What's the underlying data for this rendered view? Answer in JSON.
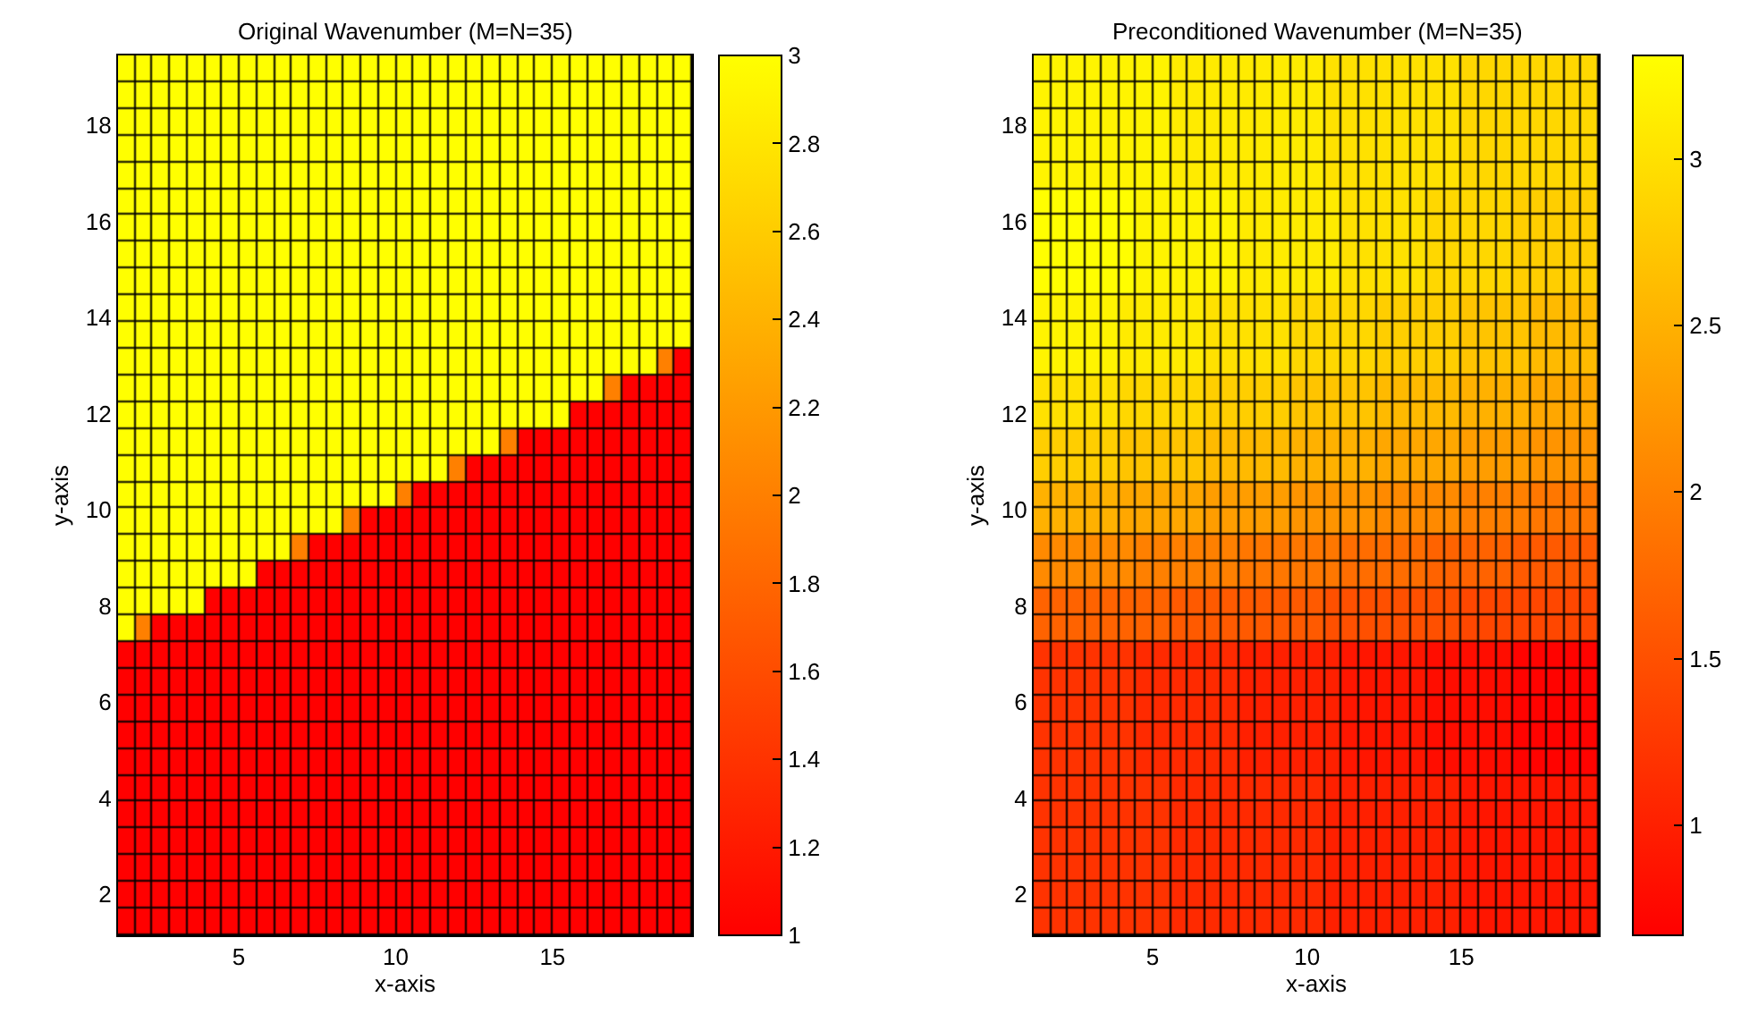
{
  "chart_data": [
    {
      "type": "heatmap",
      "title": "Original Wavenumber (M=N=35)",
      "xlabel": "x-axis",
      "ylabel": "y-axis",
      "xlim": [
        1.15,
        19.45
      ],
      "ylim": [
        1.15,
        19.45
      ],
      "xticks": [
        5,
        10,
        15
      ],
      "yticks": [
        2,
        4,
        6,
        8,
        10,
        12,
        14,
        16,
        18
      ],
      "clim": [
        1,
        3
      ],
      "cticks": [
        1,
        1.2,
        1.4,
        1.6,
        1.8,
        2,
        2.2,
        2.4,
        2.6,
        2.8,
        3
      ],
      "cells": [
        [
          3,
          3,
          3,
          3,
          3,
          3,
          3,
          3,
          3,
          3,
          3,
          3,
          3,
          3,
          3,
          3,
          3,
          3,
          3,
          3,
          3,
          3,
          3,
          3,
          3,
          3,
          3,
          3,
          3,
          3,
          3,
          3,
          3
        ],
        [
          3,
          3,
          3,
          3,
          3,
          3,
          3,
          3,
          3,
          3,
          3,
          3,
          3,
          3,
          3,
          3,
          3,
          3,
          3,
          3,
          3,
          3,
          3,
          3,
          3,
          3,
          3,
          3,
          3,
          3,
          3,
          3,
          3
        ],
        [
          3,
          3,
          3,
          3,
          3,
          3,
          3,
          3,
          3,
          3,
          3,
          3,
          3,
          3,
          3,
          3,
          3,
          3,
          3,
          3,
          3,
          3,
          3,
          3,
          3,
          3,
          3,
          3,
          3,
          3,
          3,
          3,
          3
        ],
        [
          3,
          3,
          3,
          3,
          3,
          3,
          3,
          3,
          3,
          3,
          3,
          3,
          3,
          3,
          3,
          3,
          3,
          3,
          3,
          3,
          3,
          3,
          3,
          3,
          3,
          3,
          3,
          3,
          3,
          3,
          3,
          3,
          3
        ],
        [
          3,
          3,
          3,
          3,
          3,
          3,
          3,
          3,
          3,
          3,
          3,
          3,
          3,
          3,
          3,
          3,
          3,
          3,
          3,
          3,
          3,
          3,
          3,
          3,
          3,
          3,
          3,
          3,
          3,
          3,
          3,
          3,
          3
        ],
        [
          3,
          3,
          3,
          3,
          3,
          3,
          3,
          3,
          3,
          3,
          3,
          3,
          3,
          3,
          3,
          3,
          3,
          3,
          3,
          3,
          3,
          3,
          3,
          3,
          3,
          3,
          3,
          3,
          3,
          3,
          3,
          3,
          3
        ],
        [
          3,
          3,
          3,
          3,
          3,
          3,
          3,
          3,
          3,
          3,
          3,
          3,
          3,
          3,
          3,
          3,
          3,
          3,
          3,
          3,
          3,
          3,
          3,
          3,
          3,
          3,
          3,
          3,
          3,
          3,
          3,
          3,
          3
        ],
        [
          3,
          3,
          3,
          3,
          3,
          3,
          3,
          3,
          3,
          3,
          3,
          3,
          3,
          3,
          3,
          3,
          3,
          3,
          3,
          3,
          3,
          3,
          3,
          3,
          3,
          3,
          3,
          3,
          3,
          3,
          3,
          3,
          3
        ],
        [
          3,
          3,
          3,
          3,
          3,
          3,
          3,
          3,
          3,
          3,
          3,
          3,
          3,
          3,
          3,
          3,
          3,
          3,
          3,
          3,
          3,
          3,
          3,
          3,
          3,
          3,
          3,
          3,
          3,
          3,
          3,
          3,
          3
        ],
        [
          3,
          3,
          3,
          3,
          3,
          3,
          3,
          3,
          3,
          3,
          3,
          3,
          3,
          3,
          3,
          3,
          3,
          3,
          3,
          3,
          3,
          3,
          3,
          3,
          3,
          3,
          3,
          3,
          3,
          3,
          3,
          3,
          3
        ],
        [
          3,
          3,
          3,
          3,
          3,
          3,
          3,
          3,
          3,
          3,
          3,
          3,
          3,
          3,
          3,
          3,
          3,
          3,
          3,
          3,
          3,
          3,
          3,
          3,
          3,
          3,
          3,
          3,
          3,
          3,
          3,
          3,
          3
        ],
        [
          3,
          3,
          3,
          3,
          3,
          3,
          3,
          3,
          3,
          3,
          3,
          3,
          3,
          3,
          3,
          3,
          3,
          3,
          3,
          3,
          3,
          3,
          3,
          3,
          3,
          3,
          3,
          3,
          3,
          3,
          3,
          2,
          1
        ],
        [
          3,
          3,
          3,
          3,
          3,
          3,
          3,
          3,
          3,
          3,
          3,
          3,
          3,
          3,
          3,
          3,
          3,
          3,
          3,
          3,
          3,
          3,
          3,
          3,
          3,
          3,
          3,
          3,
          2,
          1,
          1,
          1,
          1
        ],
        [
          3,
          3,
          3,
          3,
          3,
          3,
          3,
          3,
          3,
          3,
          3,
          3,
          3,
          3,
          3,
          3,
          3,
          3,
          3,
          3,
          3,
          3,
          3,
          3,
          3,
          3,
          1,
          1,
          1,
          1,
          1,
          1,
          1
        ],
        [
          3,
          3,
          3,
          3,
          3,
          3,
          3,
          3,
          3,
          3,
          3,
          3,
          3,
          3,
          3,
          3,
          3,
          3,
          3,
          3,
          3,
          3,
          2,
          1,
          1,
          1,
          1,
          1,
          1,
          1,
          1,
          1,
          1
        ],
        [
          3,
          3,
          3,
          3,
          3,
          3,
          3,
          3,
          3,
          3,
          3,
          3,
          3,
          3,
          3,
          3,
          3,
          3,
          3,
          2,
          1,
          1,
          1,
          1,
          1,
          1,
          1,
          1,
          1,
          1,
          1,
          1,
          1
        ],
        [
          3,
          3,
          3,
          3,
          3,
          3,
          3,
          3,
          3,
          3,
          3,
          3,
          3,
          3,
          3,
          3,
          2,
          1,
          1,
          1,
          1,
          1,
          1,
          1,
          1,
          1,
          1,
          1,
          1,
          1,
          1,
          1,
          1
        ],
        [
          3,
          3,
          3,
          3,
          3,
          3,
          3,
          3,
          3,
          3,
          3,
          3,
          3,
          2,
          1,
          1,
          1,
          1,
          1,
          1,
          1,
          1,
          1,
          1,
          1,
          1,
          1,
          1,
          1,
          1,
          1,
          1,
          1
        ],
        [
          3,
          3,
          3,
          3,
          3,
          3,
          3,
          3,
          3,
          3,
          2,
          1,
          1,
          1,
          1,
          1,
          1,
          1,
          1,
          1,
          1,
          1,
          1,
          1,
          1,
          1,
          1,
          1,
          1,
          1,
          1,
          1,
          1
        ],
        [
          3,
          3,
          3,
          3,
          3,
          3,
          3,
          3,
          1,
          1,
          1,
          1,
          1,
          1,
          1,
          1,
          1,
          1,
          1,
          1,
          1,
          1,
          1,
          1,
          1,
          1,
          1,
          1,
          1,
          1,
          1,
          1,
          1
        ],
        [
          3,
          3,
          3,
          3,
          3,
          1,
          1,
          1,
          1,
          1,
          1,
          1,
          1,
          1,
          1,
          1,
          1,
          1,
          1,
          1,
          1,
          1,
          1,
          1,
          1,
          1,
          1,
          1,
          1,
          1,
          1,
          1,
          1
        ],
        [
          3,
          2,
          1,
          1,
          1,
          1,
          1,
          1,
          1,
          1,
          1,
          1,
          1,
          1,
          1,
          1,
          1,
          1,
          1,
          1,
          1,
          1,
          1,
          1,
          1,
          1,
          1,
          1,
          1,
          1,
          1,
          1,
          1
        ],
        [
          1,
          1,
          1,
          1,
          1,
          1,
          1,
          1,
          1,
          1,
          1,
          1,
          1,
          1,
          1,
          1,
          1,
          1,
          1,
          1,
          1,
          1,
          1,
          1,
          1,
          1,
          1,
          1,
          1,
          1,
          1,
          1,
          1
        ],
        [
          1,
          1,
          1,
          1,
          1,
          1,
          1,
          1,
          1,
          1,
          1,
          1,
          1,
          1,
          1,
          1,
          1,
          1,
          1,
          1,
          1,
          1,
          1,
          1,
          1,
          1,
          1,
          1,
          1,
          1,
          1,
          1,
          1
        ],
        [
          1,
          1,
          1,
          1,
          1,
          1,
          1,
          1,
          1,
          1,
          1,
          1,
          1,
          1,
          1,
          1,
          1,
          1,
          1,
          1,
          1,
          1,
          1,
          1,
          1,
          1,
          1,
          1,
          1,
          1,
          1,
          1,
          1
        ],
        [
          1,
          1,
          1,
          1,
          1,
          1,
          1,
          1,
          1,
          1,
          1,
          1,
          1,
          1,
          1,
          1,
          1,
          1,
          1,
          1,
          1,
          1,
          1,
          1,
          1,
          1,
          1,
          1,
          1,
          1,
          1,
          1,
          1
        ],
        [
          1,
          1,
          1,
          1,
          1,
          1,
          1,
          1,
          1,
          1,
          1,
          1,
          1,
          1,
          1,
          1,
          1,
          1,
          1,
          1,
          1,
          1,
          1,
          1,
          1,
          1,
          1,
          1,
          1,
          1,
          1,
          1,
          1
        ],
        [
          1,
          1,
          1,
          1,
          1,
          1,
          1,
          1,
          1,
          1,
          1,
          1,
          1,
          1,
          1,
          1,
          1,
          1,
          1,
          1,
          1,
          1,
          1,
          1,
          1,
          1,
          1,
          1,
          1,
          1,
          1,
          1,
          1
        ],
        [
          1,
          1,
          1,
          1,
          1,
          1,
          1,
          1,
          1,
          1,
          1,
          1,
          1,
          1,
          1,
          1,
          1,
          1,
          1,
          1,
          1,
          1,
          1,
          1,
          1,
          1,
          1,
          1,
          1,
          1,
          1,
          1,
          1
        ],
        [
          1,
          1,
          1,
          1,
          1,
          1,
          1,
          1,
          1,
          1,
          1,
          1,
          1,
          1,
          1,
          1,
          1,
          1,
          1,
          1,
          1,
          1,
          1,
          1,
          1,
          1,
          1,
          1,
          1,
          1,
          1,
          1,
          1
        ],
        [
          1,
          1,
          1,
          1,
          1,
          1,
          1,
          1,
          1,
          1,
          1,
          1,
          1,
          1,
          1,
          1,
          1,
          1,
          1,
          1,
          1,
          1,
          1,
          1,
          1,
          1,
          1,
          1,
          1,
          1,
          1,
          1,
          1
        ],
        [
          1,
          1,
          1,
          1,
          1,
          1,
          1,
          1,
          1,
          1,
          1,
          1,
          1,
          1,
          1,
          1,
          1,
          1,
          1,
          1,
          1,
          1,
          1,
          1,
          1,
          1,
          1,
          1,
          1,
          1,
          1,
          1,
          1
        ],
        [
          1,
          1,
          1,
          1,
          1,
          1,
          1,
          1,
          1,
          1,
          1,
          1,
          1,
          1,
          1,
          1,
          1,
          1,
          1,
          1,
          1,
          1,
          1,
          1,
          1,
          1,
          1,
          1,
          1,
          1,
          1,
          1,
          1
        ]
      ]
    },
    {
      "type": "heatmap",
      "title": "Preconditioned Wavenumber (M=N=35)",
      "xlabel": "x-axis",
      "ylabel": "y-axis",
      "xlim": [
        1.15,
        19.45
      ],
      "ylim": [
        1.15,
        19.45
      ],
      "xticks": [
        5,
        10,
        15
      ],
      "yticks": [
        2,
        4,
        6,
        8,
        10,
        12,
        14,
        16,
        18
      ],
      "clim": [
        0.67,
        3.31
      ],
      "cticks": [
        1,
        1.5,
        2,
        2.5,
        3
      ],
      "cells": [
        [
          3.2,
          3.2,
          3.2,
          3.2,
          3.2,
          3.2,
          3.2,
          3.2,
          3.1,
          3.1,
          3.1,
          3.1,
          3.1,
          3.1,
          3.1,
          3.1,
          3.1,
          3,
          3,
          3,
          3,
          3,
          3,
          3,
          3,
          2.9,
          2.9,
          2.9,
          2.9,
          2.9,
          2.9,
          2.9,
          2.9
        ],
        [
          3.2,
          3.2,
          3.2,
          3.2,
          3.2,
          3.2,
          3.2,
          3.2,
          3.1,
          3.1,
          3.1,
          3.1,
          3.1,
          3.1,
          3.1,
          3.1,
          3.1,
          3,
          3,
          3,
          3,
          3,
          3,
          3,
          3,
          2.9,
          2.9,
          2.9,
          2.9,
          2.9,
          2.9,
          2.9,
          2.9
        ],
        [
          3.2,
          3.2,
          3.2,
          3.2,
          3.2,
          3.2,
          3.2,
          3.2,
          3.1,
          3.1,
          3.1,
          3.1,
          3.1,
          3.1,
          3.1,
          3.1,
          3.1,
          3,
          3,
          3,
          3,
          3,
          3,
          3,
          3,
          2.9,
          2.9,
          2.9,
          2.9,
          2.9,
          2.9,
          2.9,
          2.9
        ],
        [
          3.2,
          3.2,
          3.2,
          3.2,
          3.2,
          3.2,
          3.2,
          3.2,
          3.1,
          3.1,
          3.1,
          3.1,
          3.1,
          3.1,
          3.1,
          3.1,
          3.1,
          3,
          3,
          3,
          3,
          3,
          3,
          3,
          3,
          2.9,
          2.9,
          2.9,
          2.9,
          2.9,
          2.9,
          2.9,
          2.9
        ],
        [
          3.2,
          3.2,
          3.2,
          3.2,
          3.2,
          3.2,
          3.2,
          3.2,
          3.1,
          3.1,
          3.1,
          3.1,
          3.1,
          3.1,
          3.1,
          3.1,
          3.1,
          3,
          3,
          3,
          3,
          3,
          3,
          3,
          3,
          2.9,
          2.9,
          2.9,
          2.9,
          2.9,
          2.9,
          2.9,
          2.9
        ],
        [
          3.3,
          3.3,
          3.3,
          3.3,
          3.3,
          3.3,
          3.2,
          3.2,
          3.2,
          3.2,
          3.2,
          3.2,
          3.1,
          3.1,
          3.1,
          3.1,
          3.1,
          3.1,
          3,
          3,
          3,
          3,
          3,
          2.9,
          2.9,
          2.9,
          2.9,
          2.9,
          2.8,
          2.8,
          2.8,
          2.8,
          2.8
        ],
        [
          3.3,
          3.3,
          3.3,
          3.3,
          3.3,
          3.3,
          3.2,
          3.2,
          3.2,
          3.2,
          3.2,
          3.2,
          3.1,
          3.1,
          3.1,
          3.1,
          3.1,
          3.1,
          3,
          3,
          3,
          3,
          3,
          2.9,
          2.9,
          2.9,
          2.9,
          2.9,
          2.8,
          2.8,
          2.8,
          2.8,
          2.8
        ],
        [
          3.3,
          3.3,
          3.3,
          3.3,
          3.3,
          3.3,
          3.2,
          3.2,
          3.2,
          3.2,
          3.2,
          3.2,
          3.1,
          3.1,
          3.1,
          3.1,
          3.1,
          3.1,
          3,
          3,
          3,
          3,
          3,
          2.9,
          2.9,
          2.9,
          2.9,
          2.9,
          2.8,
          2.8,
          2.8,
          2.8,
          2.8
        ],
        [
          3.3,
          3.3,
          3.3,
          3.3,
          3.3,
          3.3,
          3.2,
          3.2,
          3.2,
          3.2,
          3.2,
          3.2,
          3.1,
          3.1,
          3.1,
          3.1,
          3.1,
          3.1,
          3,
          3,
          3,
          3,
          3,
          2.9,
          2.9,
          2.9,
          2.9,
          2.9,
          2.8,
          2.8,
          2.8,
          2.8,
          2.8
        ],
        [
          3.2,
          3.2,
          3.2,
          3.2,
          3.2,
          3.1,
          3.1,
          3.1,
          3.1,
          3.1,
          3,
          3,
          3,
          3,
          3,
          2.9,
          2.9,
          2.9,
          2.9,
          2.9,
          2.8,
          2.8,
          2.8,
          2.8,
          2.8,
          2.7,
          2.7,
          2.7,
          2.7,
          2.6,
          2.6,
          2.6,
          2.6
        ],
        [
          3.2,
          3.2,
          3.2,
          3.2,
          3.2,
          3.1,
          3.1,
          3.1,
          3.1,
          3.1,
          3,
          3,
          3,
          3,
          3,
          2.9,
          2.9,
          2.9,
          2.9,
          2.9,
          2.8,
          2.8,
          2.8,
          2.8,
          2.8,
          2.7,
          2.7,
          2.7,
          2.7,
          2.6,
          2.6,
          2.6,
          2.6
        ],
        [
          3.2,
          3.2,
          3.2,
          3.2,
          3.2,
          3.1,
          3.1,
          3.1,
          3.1,
          3.1,
          3,
          3,
          3,
          3,
          3,
          2.9,
          2.9,
          2.9,
          2.9,
          2.9,
          2.8,
          2.8,
          2.8,
          2.8,
          2.8,
          2.7,
          2.7,
          2.7,
          2.7,
          2.6,
          2.6,
          2.6,
          2.6
        ],
        [
          3,
          3,
          3,
          3,
          3,
          2.9,
          2.9,
          2.9,
          2.9,
          2.9,
          2.8,
          2.8,
          2.8,
          2.8,
          2.8,
          2.7,
          2.7,
          2.7,
          2.7,
          2.7,
          2.6,
          2.6,
          2.6,
          2.6,
          2.6,
          2.5,
          2.5,
          2.5,
          2.5,
          2.4,
          2.4,
          2.4,
          2.4
        ],
        [
          3,
          3,
          3,
          3,
          3,
          2.9,
          2.9,
          2.9,
          2.9,
          2.9,
          2.8,
          2.8,
          2.8,
          2.8,
          2.8,
          2.7,
          2.7,
          2.7,
          2.7,
          2.7,
          2.6,
          2.6,
          2.6,
          2.6,
          2.6,
          2.5,
          2.5,
          2.5,
          2.5,
          2.4,
          2.4,
          2.4,
          2.4
        ],
        [
          2.8,
          2.8,
          2.8,
          2.8,
          2.8,
          2.7,
          2.7,
          2.7,
          2.7,
          2.7,
          2.6,
          2.6,
          2.6,
          2.6,
          2.6,
          2.5,
          2.5,
          2.5,
          2.5,
          2.5,
          2.4,
          2.4,
          2.4,
          2.4,
          2.4,
          2.3,
          2.3,
          2.3,
          2.3,
          2.2,
          2.2,
          2.2,
          2.2
        ],
        [
          2.8,
          2.8,
          2.8,
          2.8,
          2.8,
          2.7,
          2.7,
          2.7,
          2.7,
          2.7,
          2.6,
          2.6,
          2.6,
          2.6,
          2.6,
          2.5,
          2.5,
          2.5,
          2.5,
          2.5,
          2.4,
          2.4,
          2.4,
          2.4,
          2.4,
          2.3,
          2.3,
          2.3,
          2.3,
          2.2,
          2.2,
          2.2,
          2.2
        ],
        [
          2.5,
          2.5,
          2.5,
          2.5,
          2.5,
          2.4,
          2.4,
          2.4,
          2.4,
          2.4,
          2.3,
          2.3,
          2.3,
          2.3,
          2.3,
          2.2,
          2.2,
          2.2,
          2.2,
          2.2,
          2.1,
          2.1,
          2.1,
          2.1,
          2.1,
          2,
          2,
          2,
          2,
          1.9,
          1.9,
          1.9,
          1.9
        ],
        [
          2.5,
          2.5,
          2.5,
          2.5,
          2.5,
          2.4,
          2.4,
          2.4,
          2.4,
          2.4,
          2.3,
          2.3,
          2.3,
          2.3,
          2.3,
          2.2,
          2.2,
          2.2,
          2.2,
          2.2,
          2.1,
          2.1,
          2.1,
          2.1,
          2.1,
          2,
          2,
          2,
          2,
          1.9,
          1.9,
          1.9,
          1.9
        ],
        [
          2.1,
          2.1,
          2.1,
          2.1,
          2.1,
          2.1,
          2,
          2,
          2,
          2,
          2,
          2,
          1.9,
          1.9,
          1.9,
          1.9,
          1.9,
          1.9,
          1.8,
          1.8,
          1.8,
          1.8,
          1.8,
          1.7,
          1.7,
          1.7,
          1.7,
          1.7,
          1.6,
          1.6,
          1.6,
          1.6,
          1.6
        ],
        [
          2.1,
          2.1,
          2.1,
          2.1,
          2.1,
          2.1,
          2,
          2,
          2,
          2,
          2,
          2,
          1.9,
          1.9,
          1.9,
          1.9,
          1.9,
          1.9,
          1.8,
          1.8,
          1.8,
          1.8,
          1.8,
          1.7,
          1.7,
          1.7,
          1.7,
          1.7,
          1.6,
          1.6,
          1.6,
          1.6,
          1.6
        ],
        [
          1.7,
          1.7,
          1.7,
          1.7,
          1.7,
          1.7,
          1.7,
          1.7,
          1.6,
          1.6,
          1.6,
          1.6,
          1.6,
          1.6,
          1.6,
          1.6,
          1.6,
          1.5,
          1.5,
          1.5,
          1.5,
          1.5,
          1.5,
          1.5,
          1.5,
          1.4,
          1.4,
          1.4,
          1.4,
          1.4,
          1.4,
          1.4,
          1.4
        ],
        [
          1.7,
          1.7,
          1.7,
          1.7,
          1.7,
          1.7,
          1.7,
          1.7,
          1.6,
          1.6,
          1.6,
          1.6,
          1.6,
          1.6,
          1.6,
          1.6,
          1.6,
          1.5,
          1.5,
          1.5,
          1.5,
          1.5,
          1.5,
          1.5,
          1.5,
          1.4,
          1.4,
          1.4,
          1.4,
          1.4,
          1.4,
          1.4,
          1.4
        ],
        [
          1.2,
          1.2,
          1.2,
          1.2,
          1.2,
          1.2,
          1.1,
          1.1,
          1.1,
          1.1,
          1.1,
          1.1,
          1,
          1,
          1,
          1,
          1,
          1,
          0.9,
          0.9,
          0.9,
          0.9,
          0.9,
          0.8,
          0.8,
          0.8,
          0.8,
          0.8,
          0.7,
          0.7,
          0.7,
          0.7,
          0.7
        ],
        [
          1.2,
          1.2,
          1.2,
          1.2,
          1.2,
          1.2,
          1.1,
          1.1,
          1.1,
          1.1,
          1.1,
          1.1,
          1,
          1,
          1,
          1,
          1,
          1,
          0.9,
          0.9,
          0.9,
          0.9,
          0.9,
          0.8,
          0.8,
          0.8,
          0.8,
          0.8,
          0.7,
          0.7,
          0.7,
          0.7,
          0.7
        ],
        [
          1.2,
          1.2,
          1.2,
          1.2,
          1.2,
          1.2,
          1.1,
          1.1,
          1.1,
          1.1,
          1.1,
          1.1,
          1,
          1,
          1,
          1,
          1,
          1,
          0.9,
          0.9,
          0.9,
          0.9,
          0.9,
          0.8,
          0.8,
          0.8,
          0.8,
          0.8,
          0.7,
          0.7,
          0.7,
          0.7,
          0.7
        ],
        [
          1.2,
          1.2,
          1.2,
          1.2,
          1.2,
          1.2,
          1.1,
          1.1,
          1.1,
          1.1,
          1.1,
          1.1,
          1,
          1,
          1,
          1,
          1,
          1,
          0.9,
          0.9,
          0.9,
          0.9,
          0.9,
          0.8,
          0.8,
          0.8,
          0.8,
          0.8,
          0.7,
          0.7,
          0.7,
          0.7,
          0.7
        ],
        [
          1.2,
          1.2,
          1.2,
          1.2,
          1.2,
          1.2,
          1.1,
          1.1,
          1.1,
          1.1,
          1.1,
          1.1,
          1,
          1,
          1,
          1,
          1,
          1,
          0.9,
          0.9,
          0.9,
          0.9,
          0.9,
          0.8,
          0.8,
          0.8,
          0.8,
          0.8,
          0.7,
          0.7,
          0.7,
          0.7,
          0.7
        ],
        [
          1.2,
          1.2,
          1.2,
          1.2,
          1.2,
          1.2,
          1.2,
          1.2,
          1.1,
          1.1,
          1.1,
          1.1,
          1.1,
          1.1,
          1.1,
          1.1,
          1.1,
          1,
          1,
          1,
          1,
          1,
          1,
          1,
          1,
          0.9,
          0.9,
          0.9,
          0.9,
          0.9,
          0.9,
          0.9,
          0.9
        ],
        [
          1.2,
          1.2,
          1.2,
          1.2,
          1.2,
          1.2,
          1.2,
          1.2,
          1.1,
          1.1,
          1.1,
          1.1,
          1.1,
          1.1,
          1.1,
          1.1,
          1.1,
          1,
          1,
          1,
          1,
          1,
          1,
          1,
          1,
          0.9,
          0.9,
          0.9,
          0.9,
          0.9,
          0.9,
          0.9,
          0.9
        ],
        [
          1.2,
          1.2,
          1.2,
          1.2,
          1.2,
          1.2,
          1.2,
          1.2,
          1.1,
          1.1,
          1.1,
          1.1,
          1.1,
          1.1,
          1.1,
          1.1,
          1.1,
          1,
          1,
          1,
          1,
          1,
          1,
          1,
          1,
          0.9,
          0.9,
          0.9,
          0.9,
          0.9,
          0.9,
          0.9,
          0.9
        ],
        [
          1.2,
          1.2,
          1.2,
          1.2,
          1.2,
          1.2,
          1.2,
          1.2,
          1.1,
          1.1,
          1.1,
          1.1,
          1.1,
          1.1,
          1.1,
          1.1,
          1.1,
          1,
          1,
          1,
          1,
          1,
          1,
          1,
          1,
          0.9,
          0.9,
          0.9,
          0.9,
          0.9,
          0.9,
          0.9,
          0.9
        ],
        [
          1.2,
          1.2,
          1.2,
          1.2,
          1.2,
          1.2,
          1.2,
          1.2,
          1.1,
          1.1,
          1.1,
          1.1,
          1.1,
          1.1,
          1.1,
          1.1,
          1.1,
          1,
          1,
          1,
          1,
          1,
          1,
          1,
          1,
          0.9,
          0.9,
          0.9,
          0.9,
          0.9,
          0.9,
          0.9,
          0.9
        ],
        [
          1.2,
          1.2,
          1.2,
          1.2,
          1.2,
          1.2,
          1.2,
          1.2,
          1.1,
          1.1,
          1.1,
          1.1,
          1.1,
          1.1,
          1.1,
          1.1,
          1.1,
          1,
          1,
          1,
          1,
          1,
          1,
          1,
          1,
          0.9,
          0.9,
          0.9,
          0.9,
          0.9,
          0.9,
          0.9,
          0.9
        ]
      ]
    }
  ]
}
